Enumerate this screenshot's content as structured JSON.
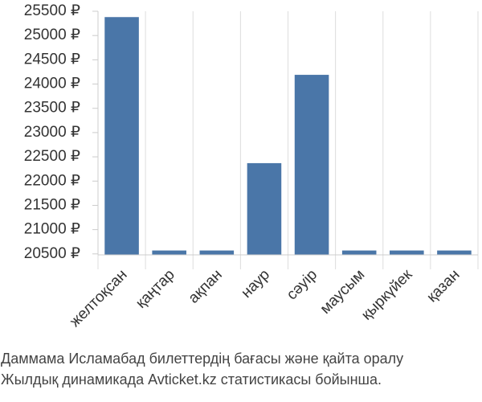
{
  "chart_data": {
    "type": "bar",
    "categories": [
      "желтоқсан",
      "қаңтар",
      "ақпан",
      "наур",
      "сәуір",
      "маусым",
      "қыркүйек",
      "қазан"
    ],
    "values": [
      25380,
      20570,
      20570,
      22370,
      24190,
      20570,
      20570,
      20570
    ],
    "color": "#4a76a8",
    "ylim": [
      20480,
      25500
    ],
    "yticks": [
      {
        "value": 20500,
        "label": "20500 ₽"
      },
      {
        "value": 21000,
        "label": "21000 ₽"
      },
      {
        "value": 21500,
        "label": "21500 ₽"
      },
      {
        "value": 22000,
        "label": "22000 ₽"
      },
      {
        "value": 22500,
        "label": "22500 ₽"
      },
      {
        "value": 23000,
        "label": "23000 ₽"
      },
      {
        "value": 23500,
        "label": "23500 ₽"
      },
      {
        "value": 24000,
        "label": "24000 ₽"
      },
      {
        "value": 24500,
        "label": "24500 ₽"
      },
      {
        "value": 25000,
        "label": "25000 ₽"
      },
      {
        "value": 25500,
        "label": "25500 ₽"
      }
    ],
    "caption": [
      "Даммама Исламабад билеттердің бағасы және қайта оралу",
      "Жылдық динамикада Avticket.kz статистикасы бойынша."
    ]
  }
}
